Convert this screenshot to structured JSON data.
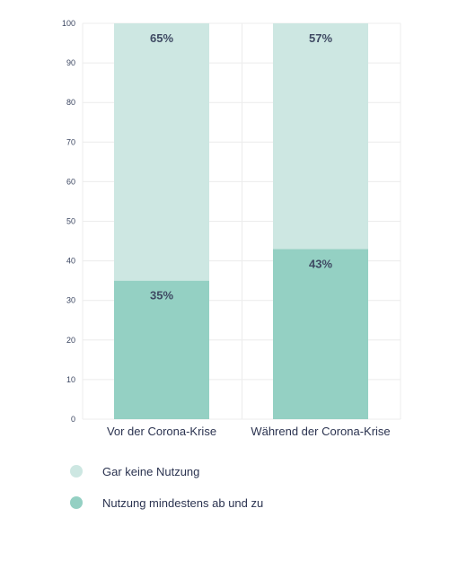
{
  "chart_data": {
    "type": "bar",
    "stacked": true,
    "categories": [
      "Vor der Corona-Krise",
      "Während der Corona-Krise"
    ],
    "series": [
      {
        "name": "Nutzung mindestens ab und zu",
        "values": [
          35,
          43
        ],
        "labels": [
          "35%",
          "43%"
        ],
        "color": "#94d0c3"
      },
      {
        "name": "Gar keine Nutzung",
        "values": [
          65,
          57
        ],
        "labels": [
          "65%",
          "57%"
        ],
        "color": "#cde7e2"
      }
    ],
    "ylim": [
      0,
      100
    ],
    "yticks": [
      0,
      10,
      20,
      30,
      40,
      50,
      60,
      70,
      80,
      90,
      100
    ],
    "grid": true,
    "legend_position": "bottom-left"
  },
  "legend": [
    {
      "label": "Gar keine Nutzung",
      "color": "#cde7e2"
    },
    {
      "label": "Nutzung mindestens ab und zu",
      "color": "#94d0c3"
    }
  ]
}
